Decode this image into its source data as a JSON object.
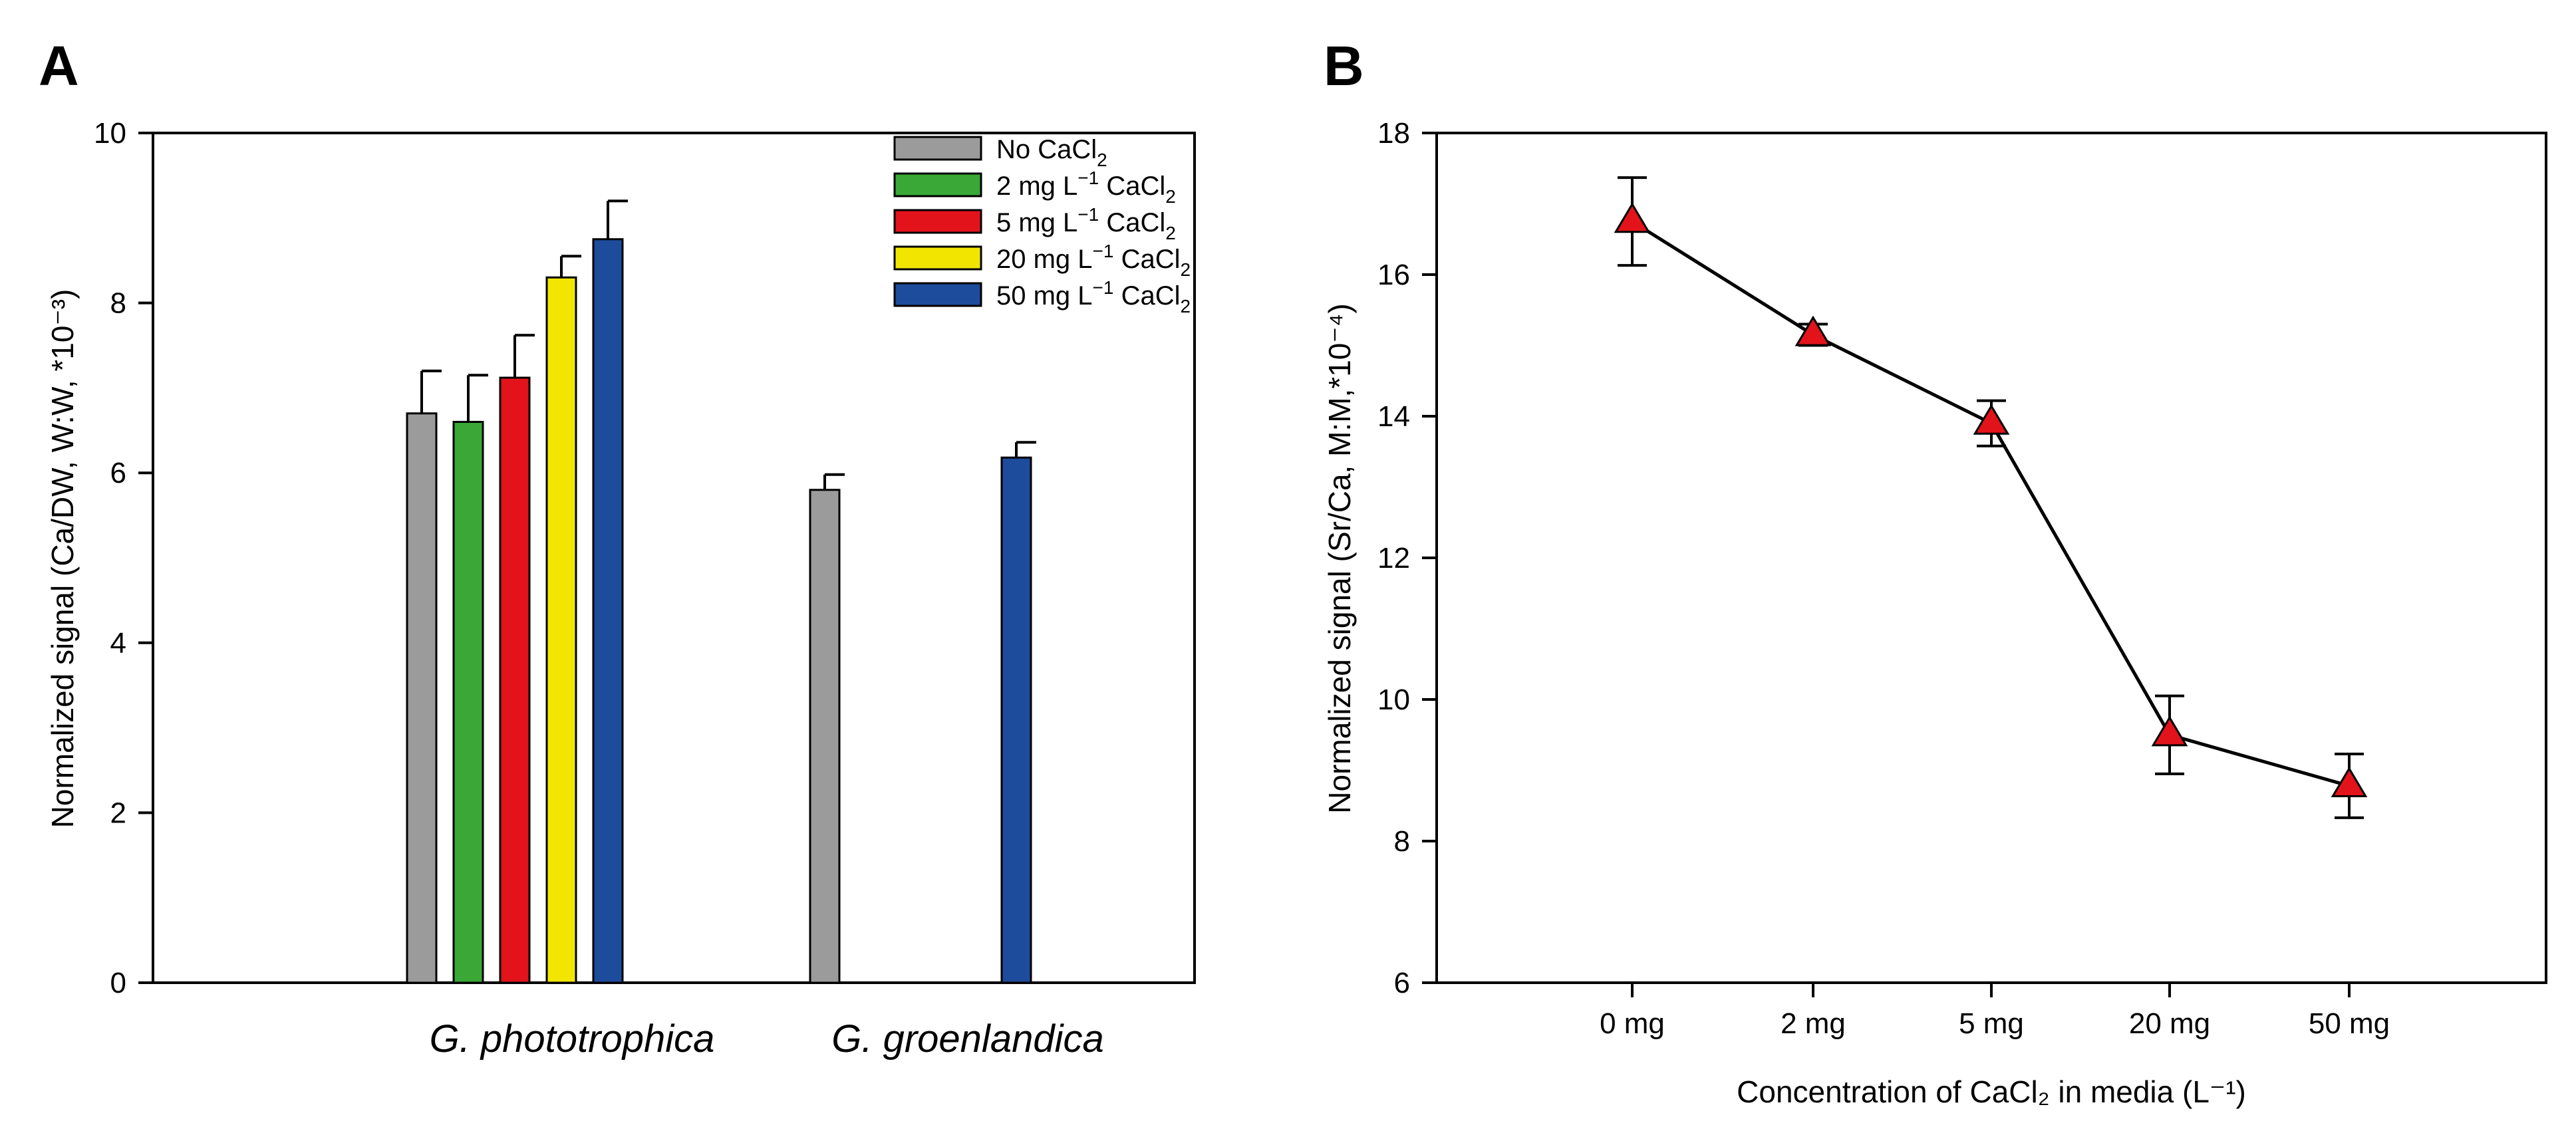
{
  "panel_a_label": "A",
  "panel_b_label": "B",
  "legend": {
    "items": [
      {
        "color": "#9b9b9b",
        "prefix": "No CaCl",
        "unit": "",
        "sub": "2"
      },
      {
        "color": "#3aa836",
        "prefix": "2 mg L",
        "unit": "−1",
        "sub": "2"
      },
      {
        "color": "#e3131b",
        "prefix": "5 mg L",
        "unit": "−1",
        "sub": "2"
      },
      {
        "color": "#f2e600",
        "prefix": "20 mg L",
        "unit": "−1",
        "sub": "2"
      },
      {
        "color": "#1e4c9c",
        "prefix": "50 mg L",
        "unit": "−1",
        "sub": "2"
      }
    ],
    "cacl": "CaCl"
  },
  "chart_data": [
    {
      "type": "bar",
      "title": "",
      "xlabel": "",
      "ylabel": "Normalized signal (Ca/DW, W:W, *10⁻³)",
      "ylim": [
        0,
        10
      ],
      "yticks": [
        0,
        2,
        4,
        6,
        8,
        10
      ],
      "categories": [
        "G. phototrophica",
        "G. groenlandica"
      ],
      "series": [
        {
          "name": "No CaCl2",
          "color": "#9b9b9b",
          "values": [
            6.7,
            5.8
          ],
          "errors": [
            0.5,
            0.18
          ]
        },
        {
          "name": "2 mg L-1 CaCl2",
          "color": "#3aa836",
          "values": [
            6.6,
            null
          ],
          "errors": [
            0.55,
            null
          ]
        },
        {
          "name": "5 mg L-1 CaCl2",
          "color": "#e3131b",
          "values": [
            7.12,
            null
          ],
          "errors": [
            0.5,
            null
          ]
        },
        {
          "name": "20 mg L-1 CaCl2",
          "color": "#f2e600",
          "values": [
            8.3,
            null
          ],
          "errors": [
            0.25,
            null
          ]
        },
        {
          "name": "50 mg L-1 CaCl2",
          "color": "#1e4c9c",
          "values": [
            8.75,
            6.18
          ],
          "errors": [
            0.45,
            0.18
          ]
        }
      ]
    },
    {
      "type": "line",
      "title": "",
      "xlabel": "Concentration of CaCl₂ in media (L⁻¹)",
      "ylabel": "Normalized signal (Sr/Ca, M:M,*10⁻⁴)",
      "ylim": [
        6,
        18
      ],
      "yticks": [
        6,
        8,
        10,
        12,
        14,
        16,
        18
      ],
      "x": [
        "0 mg",
        "2 mg",
        "5 mg",
        "20 mg",
        "50 mg"
      ],
      "series": [
        {
          "name": "Sr/Ca",
          "marker": "triangle",
          "color": "#e3131b",
          "values": [
            16.75,
            15.15,
            13.9,
            9.5,
            8.78
          ],
          "errors": [
            0.62,
            0.15,
            0.32,
            0.55,
            0.45
          ]
        }
      ]
    }
  ]
}
